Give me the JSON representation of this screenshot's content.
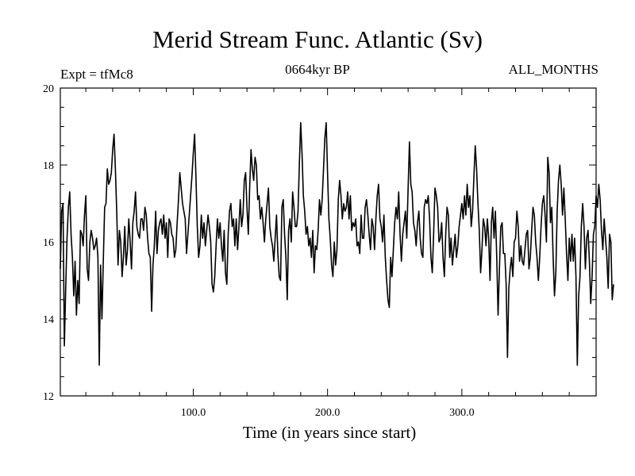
{
  "header": {
    "title": "Merid Stream Func. Atlantic (Sv)",
    "experiment": "Expt = tfMc8",
    "period": "0664kyr BP",
    "months": "ALL_MONTHS"
  },
  "chart_data": {
    "type": "line",
    "title": "Merid Stream Func. Atlantic (Sv)",
    "xlabel": "Time (in years since start)",
    "ylabel": "",
    "xlim": [
      1,
      400
    ],
    "ylim": [
      12,
      20
    ],
    "x_ticks": [
      100,
      200,
      300
    ],
    "x_tick_labels": [
      "100.0",
      "200.0",
      "300.0"
    ],
    "y_ticks": [
      12,
      14,
      16,
      18,
      20
    ],
    "y_tick_labels": [
      "12",
      "14",
      "16",
      "18",
      "20"
    ],
    "grid": false,
    "line_color": "#000000",
    "series": [
      {
        "x_start": 1,
        "x_step": 1,
        "values": [
          15.3,
          16.8,
          17.0,
          13.3,
          14.8,
          16.1,
          16.9,
          17.3,
          16.2,
          15.6,
          14.6,
          15.5,
          14.1,
          15.0,
          14.4,
          16.3,
          16.2,
          15.9,
          16.7,
          17.2,
          15.3,
          15.0,
          16.0,
          16.3,
          16.1,
          15.8,
          15.9,
          16.1,
          15.6,
          12.8,
          15.4,
          14.0,
          15.5,
          16.9,
          17.0,
          17.9,
          17.5,
          17.6,
          17.8,
          18.4,
          18.8,
          17.9,
          16.8,
          15.4,
          16.3,
          16.0,
          15.1,
          15.6,
          16.4,
          15.4,
          15.8,
          16.6,
          16.0,
          15.3,
          16.5,
          16.8,
          17.3,
          16.4,
          16.2,
          16.1,
          16.6,
          16.6,
          16.3,
          16.9,
          16.7,
          16.1,
          15.7,
          15.6,
          14.2,
          15.4,
          15.9,
          16.8,
          15.7,
          16.3,
          16.5,
          16.6,
          16.2,
          16.7,
          16.1,
          16.5,
          15.6,
          16.6,
          16.5,
          16.2,
          16.1,
          15.6,
          15.8,
          16.5,
          17.1,
          17.8,
          17.4,
          17.0,
          16.8,
          16.6,
          15.7,
          16.2,
          16.7,
          17.2,
          17.7,
          18.3,
          18.8,
          17.7,
          16.4,
          15.6,
          15.9,
          16.7,
          16.1,
          16.5,
          15.9,
          16.3,
          16.7,
          16.4,
          16.0,
          14.9,
          14.7,
          15.1,
          15.9,
          16.6,
          16.1,
          16.5,
          15.9,
          15.5,
          16.3,
          15.2,
          14.9,
          16.2,
          16.8,
          17.0,
          16.4,
          16.6,
          15.9,
          16.6,
          15.8,
          16.4,
          17.1,
          16.4,
          16.7,
          17.6,
          17.8,
          16.9,
          16.2,
          17.4,
          18.4,
          17.9,
          17.6,
          18.2,
          18.0,
          17.1,
          17.2,
          16.6,
          16.9,
          16.5,
          16.0,
          16.6,
          17.0,
          17.4,
          16.4,
          16.1,
          15.9,
          15.5,
          16.1,
          16.7,
          15.7,
          15.1,
          15.0,
          16.9,
          17.1,
          16.2,
          15.6,
          14.5,
          16.3,
          16.6,
          16.0,
          17.3,
          16.9,
          16.4,
          16.4,
          16.8,
          18.0,
          19.1,
          18.3,
          17.2,
          16.8,
          16.2,
          16.4,
          15.9,
          16.1,
          15.6,
          16.3,
          15.2,
          15.9,
          15.8,
          16.3,
          17.1,
          16.7,
          17.1,
          17.9,
          18.7,
          19.1,
          17.8,
          16.6,
          16.1,
          15.4,
          15.1,
          16.0,
          15.4,
          15.8,
          17.1,
          17.6,
          17.2,
          16.6,
          17.0,
          16.8,
          16.9,
          17.3,
          16.6,
          17.2,
          16.3,
          16.5,
          16.4,
          16.6,
          15.9,
          16.0,
          15.7,
          16.7,
          16.1,
          16.1,
          16.9,
          17.1,
          16.7,
          16.2,
          15.8,
          16.6,
          16.4,
          15.8,
          16.6,
          17.2,
          17.5,
          16.6,
          16.4,
          16.0,
          16.7,
          15.6,
          15.0,
          14.5,
          14.3,
          15.6,
          15.1,
          15.8,
          16.5,
          16.9,
          16.6,
          17.3,
          16.2,
          15.5,
          16.2,
          16.5,
          16.8,
          16.1,
          17.4,
          18.6,
          17.5,
          17.3,
          16.5,
          16.3,
          15.9,
          16.5,
          16.8,
          16.1,
          15.7,
          15.6,
          16.9,
          17.1,
          17.0,
          17.2,
          16.6,
          15.6,
          15.2,
          16.2,
          17.4,
          17.2,
          16.9,
          16.0,
          16.1,
          16.5,
          15.6,
          15.1,
          16.2,
          16.9,
          16.7,
          15.6,
          16.1,
          15.4,
          15.8,
          16.2,
          15.6,
          15.9,
          16.4,
          16.7,
          17.0,
          16.6,
          17.2,
          16.7,
          17.5,
          16.9,
          17.2,
          16.4,
          16.8,
          17.7,
          18.5,
          17.9,
          17.0,
          16.3,
          15.2,
          15.8,
          16.6,
          16.4,
          15.9,
          16.6,
          16.1,
          15.0,
          16.5,
          16.9,
          16.1,
          16.8,
          15.6,
          14.1,
          15.3,
          16.4,
          16.5,
          15.7,
          15.7,
          14.9,
          13.0,
          14.8,
          15.3,
          15.6,
          15.1,
          16.0,
          16.1,
          16.8,
          16.4,
          15.5,
          15.9,
          15.5,
          15.4,
          15.8,
          16.2,
          16.3,
          15.3,
          15.6,
          16.3,
          16.9,
          16.7,
          16.0,
          15.6,
          15.0,
          15.6,
          16.4,
          17.0,
          17.2,
          16.7,
          16.0,
          18.2,
          17.8,
          16.5,
          16.9,
          15.6,
          14.6,
          15.2,
          16.8,
          17.6,
          18.0,
          17.5,
          16.7,
          17.4,
          16.6,
          15.7,
          15.0,
          16.1,
          15.5,
          16.2,
          15.5,
          16.1,
          15.1,
          12.8,
          14.6,
          15.1,
          16.4,
          17.0,
          16.4,
          15.3,
          16.1,
          16.3,
          15.5,
          14.4,
          15.1,
          16.2,
          16.4,
          17.2,
          16.9,
          17.5,
          17.1,
          16.3,
          15.8,
          16.6,
          16.1,
          15.6,
          14.8,
          16.2,
          16.0,
          14.5,
          14.9
        ]
      }
    ]
  }
}
